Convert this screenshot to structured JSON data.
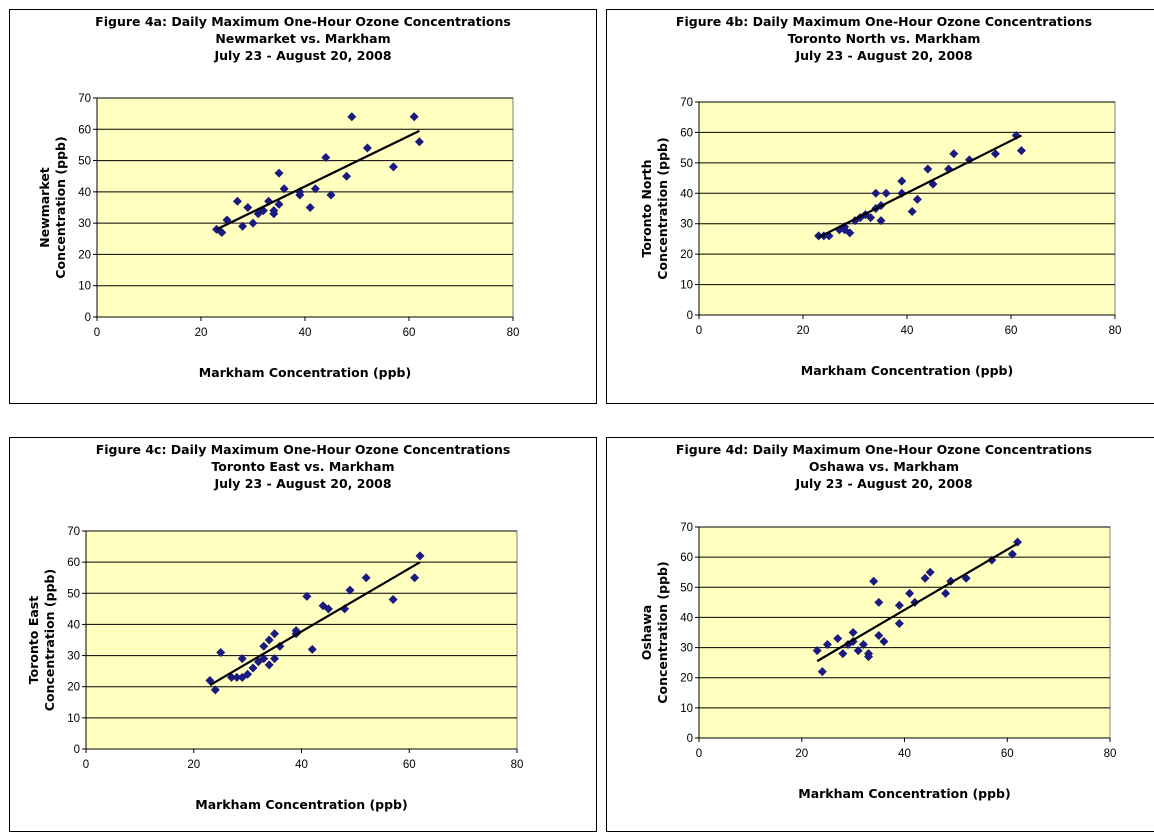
{
  "colors": {
    "plot_bg": "#ffffc0",
    "point": "#1a1a80",
    "grid": "#000000",
    "trend": "#000000"
  },
  "charts": [
    {
      "id": "4a",
      "title_lines": [
        "Figure 4a:  Daily Maximum One-Hour Ozone Concentrations",
        "Newmarket vs. Markham",
        "July 23 - August 20, 2008"
      ],
      "ylabel_lines": [
        "Newmarket",
        "Concentration (ppb)"
      ],
      "xlabel": "Markham Concentration (ppb)",
      "xticks": [
        "0",
        "20",
        "40",
        "60",
        "80"
      ],
      "yticks": [
        "0",
        "10",
        "20",
        "30",
        "40",
        "50",
        "60",
        "70"
      ]
    },
    {
      "id": "4b",
      "title_lines": [
        "Figure 4b:  Daily Maximum One-Hour Ozone Concentrations",
        "Toronto North vs. Markham",
        "July 23 - August 20, 2008"
      ],
      "ylabel_lines": [
        "Toronto North",
        "Concentration (ppb)"
      ],
      "xlabel": "Markham Concentration (ppb)",
      "xticks": [
        "0",
        "20",
        "40",
        "60",
        "80"
      ],
      "yticks": [
        "0",
        "10",
        "20",
        "30",
        "40",
        "50",
        "60",
        "70"
      ]
    },
    {
      "id": "4c",
      "title_lines": [
        "Figure 4c:  Daily Maximum One-Hour Ozone Concentrations",
        "Toronto East vs. Markham",
        "July 23 - August 20, 2008"
      ],
      "ylabel_lines": [
        "Toronto East",
        "Concentration (ppb)"
      ],
      "xlabel": "Markham Concentration (ppb)",
      "xticks": [
        "0",
        "20",
        "40",
        "60",
        "80"
      ],
      "yticks": [
        "0",
        "10",
        "20",
        "30",
        "40",
        "50",
        "60",
        "70"
      ]
    },
    {
      "id": "4d",
      "title_lines": [
        "Figure 4d:  Daily Maximum One-Hour Ozone Concentrations",
        "Oshawa vs. Markham",
        "July 23 - August 20, 2008"
      ],
      "ylabel_lines": [
        "Oshawa",
        "Concentration (ppb)"
      ],
      "xlabel": "Markham Concentration (ppb)",
      "xticks": [
        "0",
        "20",
        "40",
        "60",
        "80"
      ],
      "yticks": [
        "0",
        "10",
        "20",
        "30",
        "40",
        "50",
        "60",
        "70"
      ]
    }
  ],
  "chart_data": [
    {
      "type": "scatter",
      "title": "Figure 4a:  Daily Maximum One-Hour Ozone Concentrations Newmarket vs. Markham July 23 - August 20, 2008",
      "xlabel": "Markham Concentration (ppb)",
      "ylabel": "Newmarket Concentration (ppb)",
      "xlim": [
        0,
        80
      ],
      "ylim": [
        0,
        70
      ],
      "grid": "horizontal",
      "points": [
        [
          23,
          28
        ],
        [
          24,
          27
        ],
        [
          25,
          31
        ],
        [
          27,
          37
        ],
        [
          28,
          29
        ],
        [
          29,
          35
        ],
        [
          30,
          30
        ],
        [
          31,
          33
        ],
        [
          32,
          34
        ],
        [
          33,
          37
        ],
        [
          34,
          34
        ],
        [
          34,
          33
        ],
        [
          35,
          36
        ],
        [
          35,
          46
        ],
        [
          36,
          41
        ],
        [
          39,
          39
        ],
        [
          39,
          40
        ],
        [
          41,
          35
        ],
        [
          42,
          41
        ],
        [
          44,
          51
        ],
        [
          45,
          39
        ],
        [
          48,
          45
        ],
        [
          49,
          64
        ],
        [
          52,
          54
        ],
        [
          57,
          48
        ],
        [
          61,
          64
        ],
        [
          62,
          56
        ]
      ],
      "trendline": [
        [
          23,
          28
        ],
        [
          62,
          59.5
        ]
      ]
    },
    {
      "type": "scatter",
      "title": "Figure 4b:  Daily Maximum One-Hour Ozone Concentrations Toronto North vs. Markham July 23 - August 20, 2008",
      "xlabel": "Markham Concentration (ppb)",
      "ylabel": "Toronto North Concentration (ppb)",
      "xlim": [
        0,
        80
      ],
      "ylim": [
        0,
        70
      ],
      "grid": "horizontal",
      "points": [
        [
          23,
          26
        ],
        [
          24,
          26
        ],
        [
          25,
          26
        ],
        [
          27,
          28
        ],
        [
          28,
          29
        ],
        [
          28,
          28
        ],
        [
          29,
          27
        ],
        [
          30,
          31
        ],
        [
          31,
          32
        ],
        [
          32,
          33
        ],
        [
          33,
          32
        ],
        [
          34,
          35
        ],
        [
          34,
          40
        ],
        [
          35,
          36
        ],
        [
          35,
          31
        ],
        [
          36,
          40
        ],
        [
          39,
          44
        ],
        [
          39,
          40
        ],
        [
          41,
          34
        ],
        [
          42,
          38
        ],
        [
          44,
          48
        ],
        [
          45,
          43
        ],
        [
          48,
          48
        ],
        [
          49,
          53
        ],
        [
          52,
          51
        ],
        [
          57,
          53
        ],
        [
          61,
          59
        ],
        [
          62,
          54
        ]
      ],
      "trendline": [
        [
          23,
          25.5
        ],
        [
          62,
          59
        ]
      ]
    },
    {
      "type": "scatter",
      "title": "Figure 4c:  Daily Maximum One-Hour Ozone Concentrations Toronto East vs. Markham July 23 - August 20, 2008",
      "xlabel": "Markham Concentration (ppb)",
      "ylabel": "Toronto East Concentration (ppb)",
      "xlim": [
        0,
        80
      ],
      "ylim": [
        0,
        70
      ],
      "grid": "horizontal",
      "points": [
        [
          23,
          22
        ],
        [
          24,
          19
        ],
        [
          25,
          31
        ],
        [
          27,
          23
        ],
        [
          28,
          23
        ],
        [
          29,
          23
        ],
        [
          29,
          29
        ],
        [
          30,
          24
        ],
        [
          31,
          26
        ],
        [
          32,
          28
        ],
        [
          33,
          29
        ],
        [
          33,
          33
        ],
        [
          34,
          27
        ],
        [
          34,
          35
        ],
        [
          35,
          29
        ],
        [
          35,
          37
        ],
        [
          36,
          33
        ],
        [
          39,
          38
        ],
        [
          39,
          37
        ],
        [
          41,
          49
        ],
        [
          42,
          32
        ],
        [
          44,
          46
        ],
        [
          45,
          45
        ],
        [
          48,
          45
        ],
        [
          49,
          51
        ],
        [
          52,
          55
        ],
        [
          57,
          48
        ],
        [
          61,
          55
        ],
        [
          62,
          62
        ]
      ],
      "trendline": [
        [
          23,
          20.5
        ],
        [
          62,
          60
        ]
      ]
    },
    {
      "type": "scatter",
      "title": "Figure 4d:  Daily Maximum One-Hour Ozone Concentrations Oshawa vs. Markham July 23 - August 20, 2008",
      "xlabel": "Markham Concentration (ppb)",
      "ylabel": "Oshawa Concentration (ppb)",
      "xlim": [
        0,
        80
      ],
      "ylim": [
        0,
        70
      ],
      "grid": "horizontal",
      "points": [
        [
          23,
          29
        ],
        [
          24,
          22
        ],
        [
          25,
          31
        ],
        [
          27,
          33
        ],
        [
          28,
          28
        ],
        [
          29,
          31
        ],
        [
          30,
          35
        ],
        [
          30,
          32
        ],
        [
          31,
          29
        ],
        [
          32,
          31
        ],
        [
          33,
          28
        ],
        [
          33,
          27
        ],
        [
          34,
          52
        ],
        [
          35,
          34
        ],
        [
          35,
          45
        ],
        [
          36,
          32
        ],
        [
          39,
          44
        ],
        [
          39,
          38
        ],
        [
          41,
          48
        ],
        [
          42,
          45
        ],
        [
          44,
          53
        ],
        [
          45,
          55
        ],
        [
          48,
          48
        ],
        [
          49,
          52
        ],
        [
          52,
          53
        ],
        [
          57,
          59
        ],
        [
          61,
          61
        ],
        [
          62,
          65
        ]
      ],
      "trendline": [
        [
          23,
          25.5
        ],
        [
          62,
          64.5
        ]
      ]
    }
  ]
}
